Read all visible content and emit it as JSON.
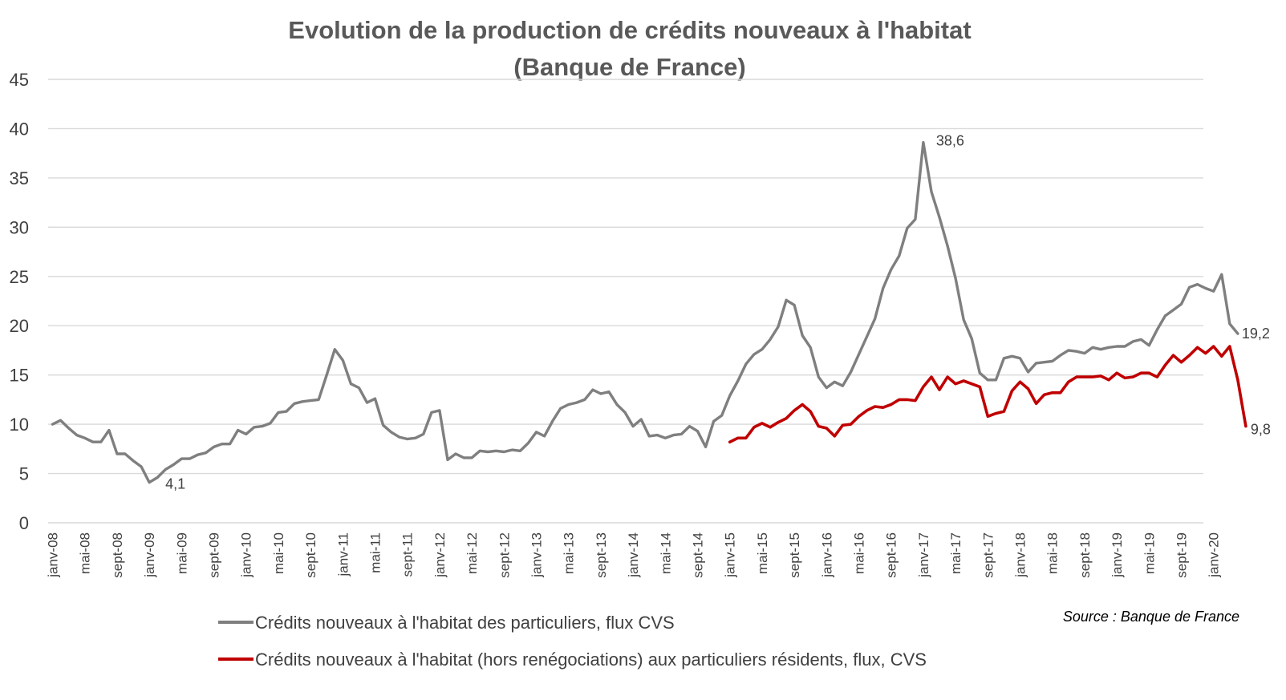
{
  "chart_data": {
    "type": "line",
    "title": "Evolution de la production de crédits nouveaux à l'habitat",
    "subtitle": "(Banque de France)",
    "ylim": [
      0,
      45
    ],
    "yticks": [
      0,
      5,
      10,
      15,
      20,
      25,
      30,
      35,
      40,
      45
    ],
    "grid": true,
    "legend_position": "bottom",
    "source": "Source : Banque de France",
    "x_tick_labels": [
      "janv-08",
      "mai-08",
      "sept-08",
      "janv-09",
      "mai-09",
      "sept-09",
      "janv-10",
      "mai-10",
      "sept-10",
      "janv-11",
      "mai-11",
      "sept-11",
      "janv-12",
      "mai-12",
      "sept-12",
      "janv-13",
      "mai-13",
      "sept-13",
      "janv-14",
      "mai-14",
      "sept-14",
      "janv-15",
      "mai-15",
      "sept-15",
      "janv-16",
      "mai-16",
      "sept-16",
      "janv-17",
      "mai-17",
      "sept-17",
      "janv-18",
      "mai-18",
      "sept-18",
      "janv-19",
      "mai-19",
      "sept-19",
      "janv-20"
    ],
    "x_start": "janv-08",
    "series": [
      {
        "name": "Crédits nouveaux à l'habitat des particuliers, flux CVS",
        "color": "#7f7f7f",
        "start": "janv-08",
        "values": [
          10.0,
          10.4,
          9.6,
          8.9,
          8.6,
          8.2,
          8.2,
          9.4,
          7.0,
          7.0,
          6.3,
          5.7,
          4.1,
          4.6,
          5.4,
          5.9,
          6.5,
          6.5,
          6.9,
          7.1,
          7.7,
          8.0,
          8.0,
          9.4,
          9.0,
          9.7,
          9.8,
          10.1,
          11.2,
          11.3,
          12.1,
          12.3,
          12.4,
          12.5,
          15.0,
          17.6,
          16.5,
          14.1,
          13.7,
          12.2,
          12.6,
          9.9,
          9.2,
          8.7,
          8.5,
          8.6,
          9.0,
          11.2,
          11.4,
          6.4,
          7.0,
          6.6,
          6.6,
          7.3,
          7.2,
          7.3,
          7.2,
          7.4,
          7.3,
          8.1,
          9.2,
          8.8,
          10.3,
          11.6,
          12.0,
          12.2,
          12.5,
          13.5,
          13.1,
          13.3,
          12.0,
          11.2,
          9.8,
          10.5,
          8.8,
          8.9,
          8.6,
          8.9,
          9.0,
          9.8,
          9.3,
          7.7,
          10.3,
          10.9,
          12.9,
          14.4,
          16.1,
          17.1,
          17.6,
          18.6,
          19.9,
          22.6,
          22.1,
          19.0,
          17.8,
          14.8,
          13.7,
          14.3,
          13.9,
          15.3,
          17.1,
          18.9,
          20.7,
          23.8,
          25.7,
          27.1,
          29.9,
          30.8,
          38.6,
          33.6,
          31.0,
          28.1,
          24.8,
          20.6,
          18.7,
          15.2,
          14.5,
          14.5,
          16.7,
          16.9,
          16.7,
          15.3,
          16.2,
          16.3,
          16.4,
          17.0,
          17.5,
          17.4,
          17.2,
          17.8,
          17.6,
          17.8,
          17.9,
          17.9,
          18.4,
          18.6,
          18.0,
          19.6,
          21.0,
          21.6,
          22.2,
          23.9,
          24.2,
          23.8,
          23.5,
          25.2,
          20.2,
          19.2
        ]
      },
      {
        "name": "Crédits nouveaux à l'habitat (hors renégociations) aux particuliers résidents, flux, CVS",
        "color": "#c00000",
        "start": "janv-15",
        "values": [
          8.2,
          8.6,
          8.6,
          9.7,
          10.1,
          9.7,
          10.2,
          10.6,
          11.4,
          12.0,
          11.3,
          9.8,
          9.6,
          8.8,
          9.9,
          10.0,
          10.8,
          11.4,
          11.8,
          11.7,
          12.0,
          12.5,
          12.5,
          12.4,
          13.8,
          14.8,
          13.5,
          14.8,
          14.1,
          14.4,
          14.1,
          13.8,
          10.8,
          11.1,
          11.3,
          13.4,
          14.3,
          13.6,
          12.1,
          13.0,
          13.2,
          13.2,
          14.3,
          14.8,
          14.8,
          14.8,
          14.9,
          14.5,
          15.2,
          14.7,
          14.8,
          15.2,
          15.2,
          14.8,
          16.0,
          17.0,
          16.3,
          17.0,
          17.8,
          17.2,
          17.9,
          16.9,
          17.9,
          14.5,
          9.8
        ]
      }
    ],
    "data_labels": [
      {
        "series": 0,
        "point": "janv-09",
        "text": "4,1"
      },
      {
        "series": 0,
        "point": "janv-17",
        "text": "38,6"
      },
      {
        "series": 0,
        "point": "last",
        "text": "19,2"
      },
      {
        "series": 1,
        "point": "last",
        "text": "9,8"
      }
    ]
  }
}
